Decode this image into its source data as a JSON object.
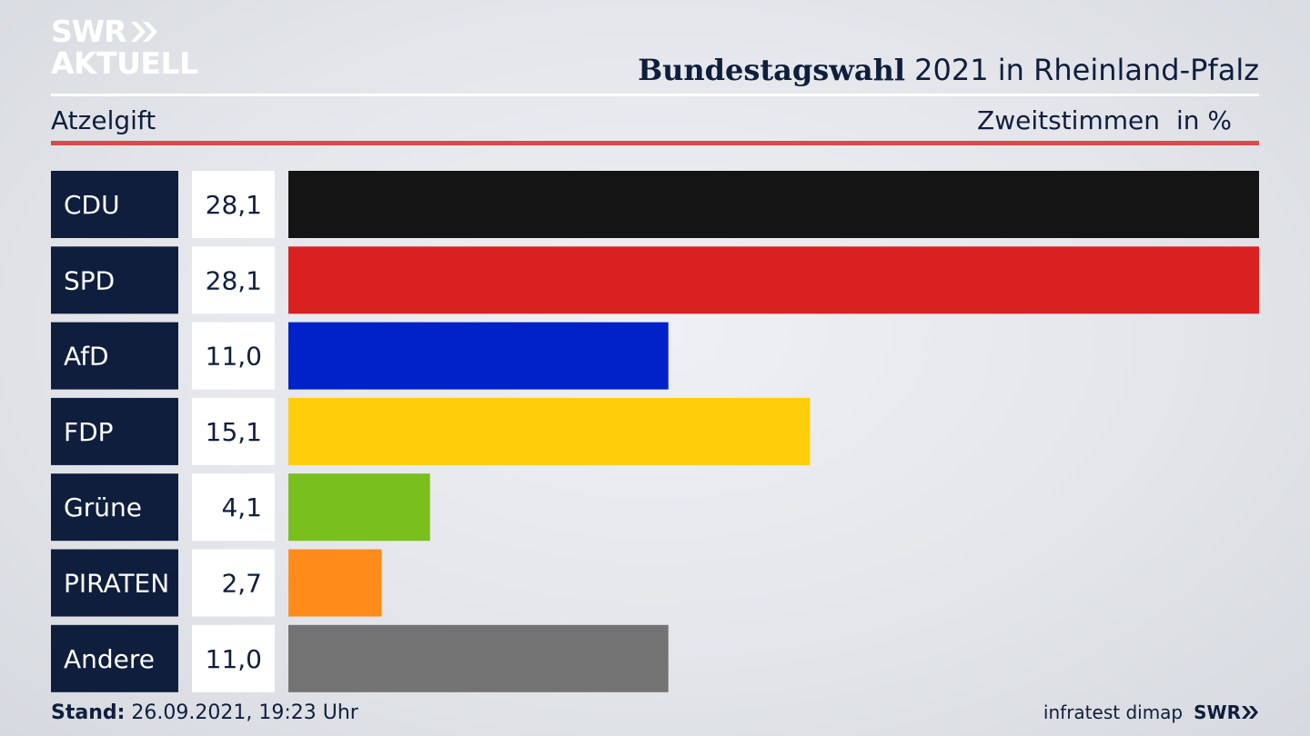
{
  "branding": {
    "logo_line1": "SWR",
    "logo_line2": "AKTUELL",
    "footer_logo": "SWR"
  },
  "header": {
    "title_bold": "Bundestagswahl",
    "title_rest": "2021 in Rheinland-Pfalz",
    "region": "Atzelgift",
    "metric": "Zweitstimmen",
    "unit": "in %"
  },
  "footer": {
    "stand_label": "Stand:",
    "stand_value": "26.09.2021, 19:23 Uhr",
    "source": "infratest dimap"
  },
  "colors": {
    "navy": "#0f1e3d",
    "accent_red": "#d94a4a"
  },
  "chart_data": {
    "type": "bar",
    "orientation": "horizontal",
    "categories": [
      "CDU",
      "SPD",
      "AfD",
      "FDP",
      "Grüne",
      "PIRATEN",
      "Andere"
    ],
    "values": [
      28.1,
      28.1,
      11.0,
      15.1,
      4.1,
      2.7,
      11.0
    ],
    "value_labels": [
      "28,1",
      "28,1",
      "11,0",
      "15,1",
      "4,1",
      "2,7",
      "11,0"
    ],
    "colors": [
      "#141414",
      "#d92121",
      "#0022c8",
      "#ffcd0a",
      "#79bf1e",
      "#ff8c1a",
      "#737373"
    ],
    "xlim": [
      0,
      28.1
    ],
    "grid": false,
    "legend": "none"
  }
}
